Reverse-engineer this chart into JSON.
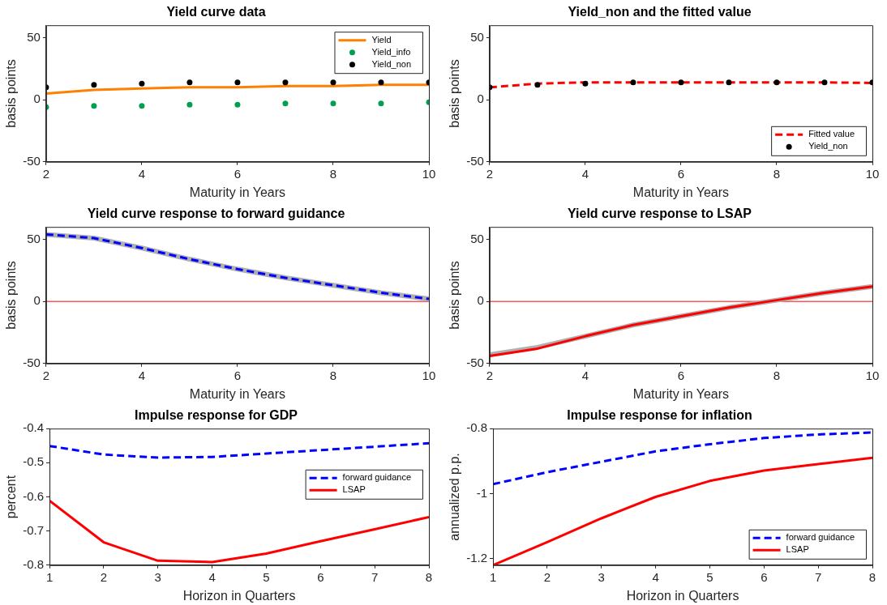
{
  "chart_data": [
    {
      "type": "line",
      "title": "Yield curve data",
      "xlabel": "Maturity in Years",
      "ylabel": "basis points",
      "x": [
        2,
        3,
        4,
        5,
        6,
        7,
        8,
        9,
        10
      ],
      "xlim": [
        2,
        10
      ],
      "xticks": [
        2,
        4,
        6,
        8,
        10
      ],
      "ylim": [
        -50,
        60
      ],
      "yticks": [
        -50,
        0,
        50
      ],
      "grid": false,
      "legend": "top right",
      "series": [
        {
          "name": "Yield",
          "type": "line",
          "color": "#ff7f00",
          "line_style": "solid",
          "marker": "none",
          "values": [
            5,
            8,
            9,
            10,
            10,
            11,
            11,
            12,
            12
          ]
        },
        {
          "name": "Yield_info",
          "type": "scatter",
          "color": "#00a050",
          "marker": "circle",
          "values": [
            -6,
            -5,
            -5,
            -4,
            -4,
            -3,
            -3,
            -3,
            -2
          ]
        },
        {
          "name": "Yield_non",
          "type": "scatter",
          "color": "#000000",
          "marker": "circle",
          "values": [
            10,
            12,
            13,
            14,
            14,
            14,
            14,
            14,
            14
          ]
        }
      ]
    },
    {
      "type": "line",
      "title": "Yield_non and the fitted value",
      "xlabel": "Maturity in Years",
      "ylabel": "basis points",
      "x": [
        2,
        3,
        4,
        5,
        6,
        7,
        8,
        9,
        10
      ],
      "xlim": [
        2,
        10
      ],
      "xticks": [
        2,
        4,
        6,
        8,
        10
      ],
      "ylim": [
        -50,
        60
      ],
      "yticks": [
        -50,
        0,
        50
      ],
      "grid": false,
      "legend": "bottom right",
      "series": [
        {
          "name": "Fitted value",
          "type": "line",
          "color": "#ff0000",
          "line_style": "dashed",
          "marker": "none",
          "values": [
            10,
            13,
            14,
            14,
            14,
            14,
            14,
            14,
            13.5
          ]
        },
        {
          "name": "Yield_non",
          "type": "scatter",
          "color": "#000000",
          "marker": "circle",
          "values": [
            10,
            12,
            13,
            14,
            14,
            14,
            14,
            14,
            14
          ]
        }
      ]
    },
    {
      "type": "line",
      "title": "Yield curve response to forward guidance",
      "xlabel": "Maturity in Years",
      "ylabel": "basis points",
      "x": [
        2,
        3,
        4,
        5,
        6,
        7,
        8,
        9,
        10
      ],
      "xlim": [
        2,
        10
      ],
      "xticks": [
        2,
        4,
        6,
        8,
        10
      ],
      "ylim": [
        -50,
        60
      ],
      "yticks": [
        -50,
        0,
        50
      ],
      "grid": false,
      "ref_lines": [
        {
          "axis": "y",
          "value": 0,
          "color": "#ff0000"
        }
      ],
      "series": [
        {
          "type": "line",
          "color": "#b0b0b0",
          "line_style": "solid",
          "marker": "none",
          "values": [
            54,
            51,
            43,
            34,
            26,
            19,
            13,
            7,
            2
          ]
        },
        {
          "type": "line",
          "color": "#0000ff",
          "line_style": "dashed",
          "marker": "none",
          "values": [
            54,
            51,
            43,
            34,
            26,
            19,
            13,
            7,
            2
          ]
        }
      ]
    },
    {
      "type": "line",
      "title": "Yield curve response to LSAP",
      "xlabel": "Maturity in Years",
      "ylabel": "basis points",
      "x": [
        2,
        3,
        4,
        5,
        6,
        7,
        8,
        9,
        10
      ],
      "xlim": [
        2,
        10
      ],
      "xticks": [
        2,
        4,
        6,
        8,
        10
      ],
      "ylim": [
        -50,
        60
      ],
      "yticks": [
        -50,
        0,
        50
      ],
      "grid": false,
      "ref_lines": [
        {
          "axis": "y",
          "value": 0,
          "color": "#ff0000"
        }
      ],
      "series": [
        {
          "type": "line",
          "color": "#b0b0b0",
          "line_style": "solid",
          "marker": "none",
          "values": [
            -43,
            -37,
            -28,
            -19,
            -12,
            -5,
            1,
            7,
            12
          ]
        },
        {
          "type": "line",
          "color": "#ff0000",
          "line_style": "solid",
          "marker": "none",
          "values": [
            -44,
            -38,
            -28,
            -19,
            -12,
            -5,
            1,
            7,
            12
          ]
        }
      ]
    },
    {
      "type": "line",
      "title": "Impulse response for GDP",
      "xlabel": "Horizon in Quarters",
      "ylabel": "percent",
      "x": [
        1,
        2,
        3,
        4,
        5,
        6,
        7,
        8
      ],
      "xlim": [
        1,
        8
      ],
      "xticks": [
        1,
        2,
        3,
        4,
        5,
        6,
        7,
        8
      ],
      "ylim": [
        -0.8,
        -0.4
      ],
      "yticks": [
        -0.8,
        -0.7,
        -0.6,
        -0.5,
        -0.4
      ],
      "grid": false,
      "legend": "right",
      "series": [
        {
          "name": "forward guidance",
          "type": "line",
          "color": "#0000ff",
          "line_style": "dashed",
          "marker": "none",
          "values": [
            -0.451,
            -0.476,
            -0.485,
            -0.483,
            -0.473,
            -0.463,
            -0.453,
            -0.443
          ]
        },
        {
          "name": "LSAP",
          "type": "line",
          "color": "#ff0000",
          "line_style": "solid",
          "marker": "none",
          "values": [
            -0.611,
            -0.733,
            -0.787,
            -0.791,
            -0.766,
            -0.73,
            -0.695,
            -0.659
          ]
        }
      ]
    },
    {
      "type": "line",
      "title": "Impulse response for inflation",
      "xlabel": "Horizon in Quarters",
      "ylabel": "annualized p.p.",
      "x": [
        1,
        2,
        3,
        4,
        5,
        6,
        7,
        8
      ],
      "xlim": [
        1,
        8
      ],
      "xticks": [
        1,
        2,
        3,
        4,
        5,
        6,
        7,
        8
      ],
      "ylim": [
        -1.22,
        -0.8
      ],
      "yticks": [
        -1.2,
        -1,
        -0.8
      ],
      "grid": false,
      "legend": "bottom right",
      "series": [
        {
          "name": "forward guidance",
          "type": "line",
          "color": "#0000ff",
          "line_style": "dashed",
          "marker": "none",
          "values": [
            -0.971,
            -0.934,
            -0.902,
            -0.87,
            -0.848,
            -0.829,
            -0.818,
            -0.812
          ]
        },
        {
          "name": "LSAP",
          "type": "line",
          "color": "#ff0000",
          "line_style": "solid",
          "marker": "none",
          "values": [
            -1.22,
            -1.149,
            -1.076,
            -1.01,
            -0.961,
            -0.929,
            -0.909,
            -0.89
          ]
        }
      ]
    }
  ]
}
